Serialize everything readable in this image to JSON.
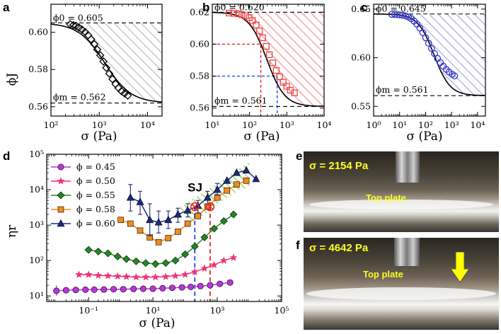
{
  "panel_letters": {
    "a": "a",
    "b": "b",
    "c": "c",
    "d": "d",
    "e": "e",
    "f": "f"
  },
  "axes_text": {
    "phiJ_label": "ϕJ",
    "sigma_label": "σ (Pa)",
    "eta_label": "ηr"
  },
  "colors": {
    "a": "#555555",
    "b": "#ee4444",
    "c": "#3333cc",
    "shade_a": "#c8c8c8",
    "shade_b": "#f4a8a8",
    "shade_c": "#b8b8ea",
    "sj": "#9ccc54",
    "sj_text": "#2aa84a"
  },
  "chart_data": [
    {
      "id": "a",
      "type": "line",
      "title": "",
      "xlabel": "σ (Pa)",
      "ylabel": "ϕJ",
      "xscale": "log",
      "xlim": [
        100,
        20000
      ],
      "ylim": [
        0.555,
        0.615
      ],
      "xticks": [
        {
          "v": 100,
          "label": "10²"
        },
        {
          "v": 1000,
          "label": "10³"
        },
        {
          "v": 10000,
          "label": "10⁴"
        }
      ],
      "yticks": [
        {
          "v": 0.56,
          "label": "0.56"
        },
        {
          "v": 0.58,
          "label": "0.58"
        },
        {
          "v": 0.6,
          "label": "0.60"
        }
      ],
      "phi0": 0.605,
      "phim": 0.562,
      "phi0_label": "ϕ0 = 0.605",
      "phim_label": "ϕm = 0.562",
      "marker": "diamond",
      "sigma_star": 1300,
      "fit_exponent": 1.6,
      "points": {
        "x": [
          250,
          290,
          330,
          380,
          440,
          510,
          590,
          680,
          790,
          910,
          1050,
          1220,
          1400,
          1620,
          1880,
          2180,
          2500,
          2900,
          3350,
          3900
        ],
        "y": [
          0.6043,
          0.6038,
          0.6034,
          0.6025,
          0.6014,
          0.6001,
          0.5984,
          0.5962,
          0.5936,
          0.5907,
          0.5876,
          0.5843,
          0.5809,
          0.5778,
          0.5748,
          0.5722,
          0.5701,
          0.5683,
          0.5671,
          0.566
        ]
      }
    },
    {
      "id": "b",
      "type": "line",
      "title": "",
      "xlabel": "σ (Pa)",
      "ylabel": "",
      "xscale": "log",
      "xlim": [
        10,
        10000
      ],
      "ylim": [
        0.555,
        0.625
      ],
      "xticks": [
        {
          "v": 10,
          "label": "10¹"
        },
        {
          "v": 100,
          "label": "10²"
        },
        {
          "v": 1000,
          "label": "10³"
        },
        {
          "v": 10000,
          "label": "10⁴"
        }
      ],
      "yticks": [
        {
          "v": 0.56,
          "label": "0.56"
        },
        {
          "v": 0.58,
          "label": "0.58"
        },
        {
          "v": 0.6,
          "label": "0.60"
        },
        {
          "v": 0.62,
          "label": "0.62"
        }
      ],
      "phi0": 0.62,
      "phim": 0.561,
      "phi0_label": "ϕ0 = 0.620",
      "phim_label": "ϕm = 0.561",
      "marker": "square",
      "sigma_star": 290,
      "fit_exponent": 1.8,
      "guides": [
        {
          "x": 200,
          "y": 0.6,
          "color": "#ee2222"
        },
        {
          "x": 550,
          "y": 0.58,
          "color": "#2244ee"
        }
      ],
      "points": {
        "x": [
          28,
          38,
          50,
          62,
          78,
          98,
          120,
          150,
          185,
          225,
          280,
          340,
          420,
          520,
          640,
          800,
          990,
          1250,
          1600
        ],
        "y": [
          0.6195,
          0.6193,
          0.619,
          0.6185,
          0.6178,
          0.6166,
          0.6148,
          0.612,
          0.6083,
          0.604,
          0.5986,
          0.5934,
          0.5883,
          0.5836,
          0.5796,
          0.5762,
          0.5736,
          0.5712,
          0.5695
        ]
      }
    },
    {
      "id": "c",
      "type": "line",
      "title": "",
      "xlabel": "σ (Pa)",
      "ylabel": "",
      "xscale": "log",
      "xlim": [
        1,
        20000
      ],
      "ylim": [
        0.54,
        0.655
      ],
      "xticks": [
        {
          "v": 1,
          "label": "10⁰"
        },
        {
          "v": 10,
          "label": "10¹"
        },
        {
          "v": 100,
          "label": "10²"
        },
        {
          "v": 1000,
          "label": "10³"
        },
        {
          "v": 10000,
          "label": "10⁴"
        }
      ],
      "yticks": [
        {
          "v": 0.55,
          "label": "0.55"
        },
        {
          "v": 0.6,
          "label": "0.60"
        },
        {
          "v": 0.65,
          "label": "0.65"
        }
      ],
      "phi0": 0.645,
      "phim": 0.561,
      "phi0_label": "ϕ0 = 0.645",
      "phim_label": "ϕm = 0.561",
      "marker": "circle",
      "sigma_star": 210,
      "fit_exponent": 1.4,
      "points": {
        "x": [
          5,
          6.5,
          8,
          10,
          13,
          17,
          22,
          28,
          36,
          46,
          60,
          78,
          100,
          130,
          170,
          220,
          285,
          370,
          480,
          620,
          800,
          1050,
          1300
        ],
        "y": [
          0.6446,
          0.6445,
          0.6444,
          0.6441,
          0.6437,
          0.643,
          0.6418,
          0.6401,
          0.6377,
          0.6345,
          0.6305,
          0.6258,
          0.6206,
          0.615,
          0.6095,
          0.6042,
          0.5993,
          0.595,
          0.5912,
          0.588,
          0.5853,
          0.583,
          0.5813
        ]
      }
    },
    {
      "id": "d",
      "type": "line",
      "title": "",
      "xlabel": "σ (Pa)",
      "ylabel": "ηr",
      "xscale": "log",
      "yscale": "log",
      "xlim": [
        0.005,
        100000
      ],
      "ylim": [
        7,
        100000
      ],
      "xticks": [
        {
          "v": 0.1,
          "label": "10⁻¹"
        },
        {
          "v": 10,
          "label": "10¹"
        },
        {
          "v": 1000,
          "label": "10³"
        },
        {
          "v": 100000,
          "label": "10⁵"
        }
      ],
      "yticks": [
        {
          "v": 10,
          "label": "10¹"
        },
        {
          "v": 100,
          "label": "10²"
        },
        {
          "v": 1000,
          "label": "10³"
        },
        {
          "v": 10000,
          "label": "10⁴"
        },
        {
          "v": 100000,
          "label": "10⁵"
        }
      ],
      "sj_label": "SJ",
      "sj_region": [
        [
          50,
          2500
        ],
        [
          200,
          6000
        ],
        [
          1000,
          15000
        ],
        [
          5000,
          40000
        ],
        [
          10000,
          60000
        ],
        [
          10000,
          12000
        ],
        [
          5000,
          10000
        ],
        [
          1000,
          4000
        ],
        [
          200,
          1200
        ]
      ],
      "vlines": [
        {
          "x": 200,
          "y": 3300,
          "color": "#2244ee"
        },
        {
          "x": 600,
          "y": 3300,
          "color": "#ee2222"
        }
      ],
      "crossings": [
        {
          "x": 200,
          "y": 3300
        },
        {
          "x": 600,
          "y": 3300
        }
      ],
      "series": [
        {
          "name": "ϕ = 0.45",
          "label": "ϕ = 0.45",
          "color": "#bb33dd",
          "marker": "circle",
          "x": [
            0.01,
            0.02,
            0.04,
            0.08,
            0.15,
            0.3,
            0.6,
            1.2,
            2.5,
            5,
            10,
            20,
            40,
            80,
            150,
            300,
            600,
            1200,
            2500
          ],
          "y": [
            14,
            14.5,
            14.8,
            15,
            15,
            15.2,
            15.5,
            15.5,
            15.8,
            16,
            16,
            16.5,
            17,
            17.5,
            18,
            19,
            20,
            22,
            24
          ],
          "err_first": {
            "x": 0.01,
            "lo": 10,
            "hi": 20
          }
        },
        {
          "name": "ϕ = 0.50",
          "label": "ϕ = 0.50",
          "color": "#ee3377",
          "marker": "star",
          "x": [
            0.05,
            0.1,
            0.2,
            0.4,
            0.8,
            1.5,
            3,
            6,
            12,
            25,
            50,
            100,
            200,
            400,
            800,
            1600,
            3200
          ],
          "y": [
            40,
            40,
            38,
            37,
            36,
            35,
            34,
            34,
            34,
            35,
            37,
            40,
            48,
            60,
            75,
            100,
            120
          ]
        },
        {
          "name": "ϕ = 0.55",
          "label": "ϕ = 0.55",
          "color": "#228822",
          "marker": "diamond",
          "x": [
            0.1,
            0.2,
            0.4,
            0.8,
            1.5,
            3,
            6,
            12,
            25,
            50,
            100,
            200,
            400,
            800,
            1600,
            3200
          ],
          "y": [
            200,
            180,
            160,
            130,
            110,
            95,
            85,
            80,
            85,
            100,
            150,
            250,
            450,
            800,
            1300,
            2000
          ]
        },
        {
          "name": "ϕ = 0.58",
          "label": "ϕ = 0.58",
          "color": "#f08a1c",
          "marker": "square",
          "x": [
            1,
            2,
            4,
            8,
            15,
            30,
            60,
            120,
            250,
            500,
            1000,
            2000,
            4000,
            8000
          ],
          "y": [
            1400,
            1100,
            700,
            450,
            330,
            430,
            650,
            1100,
            1800,
            3300,
            6000,
            9500,
            14000,
            18000
          ]
        },
        {
          "name": "ϕ = 0.60",
          "label": "ϕ = 0.60",
          "color": "#1a2a80",
          "marker": "triangle",
          "x": [
            2,
            4,
            8,
            15,
            30,
            60,
            120,
            250,
            500,
            1000,
            2000,
            4000,
            8000,
            16000
          ],
          "y": [
            6000,
            4500,
            1400,
            1200,
            1400,
            2000,
            2600,
            3500,
            6000,
            10000,
            18000,
            30000,
            35000,
            20000
          ],
          "err": [
            [
              2,
              2500,
              14000
            ],
            [
              4,
              2000,
              9000
            ],
            [
              8,
              500,
              4000
            ],
            [
              15,
              600,
              2500
            ],
            [
              30,
              800,
              2500
            ],
            [
              60,
              1200,
              3000
            ],
            [
              120,
              1700,
              4000
            ],
            [
              250,
              2200,
              5000
            ],
            [
              500,
              4000,
              9000
            ],
            [
              1000,
              7000,
              15000
            ]
          ]
        }
      ]
    }
  ],
  "photos": [
    {
      "id": "e",
      "sigma_label": "σ = 2154 Pa",
      "plate_label": "Top plate"
    },
    {
      "id": "f",
      "sigma_label": "σ = 4642 Pa",
      "plate_label": "Top plate"
    }
  ]
}
